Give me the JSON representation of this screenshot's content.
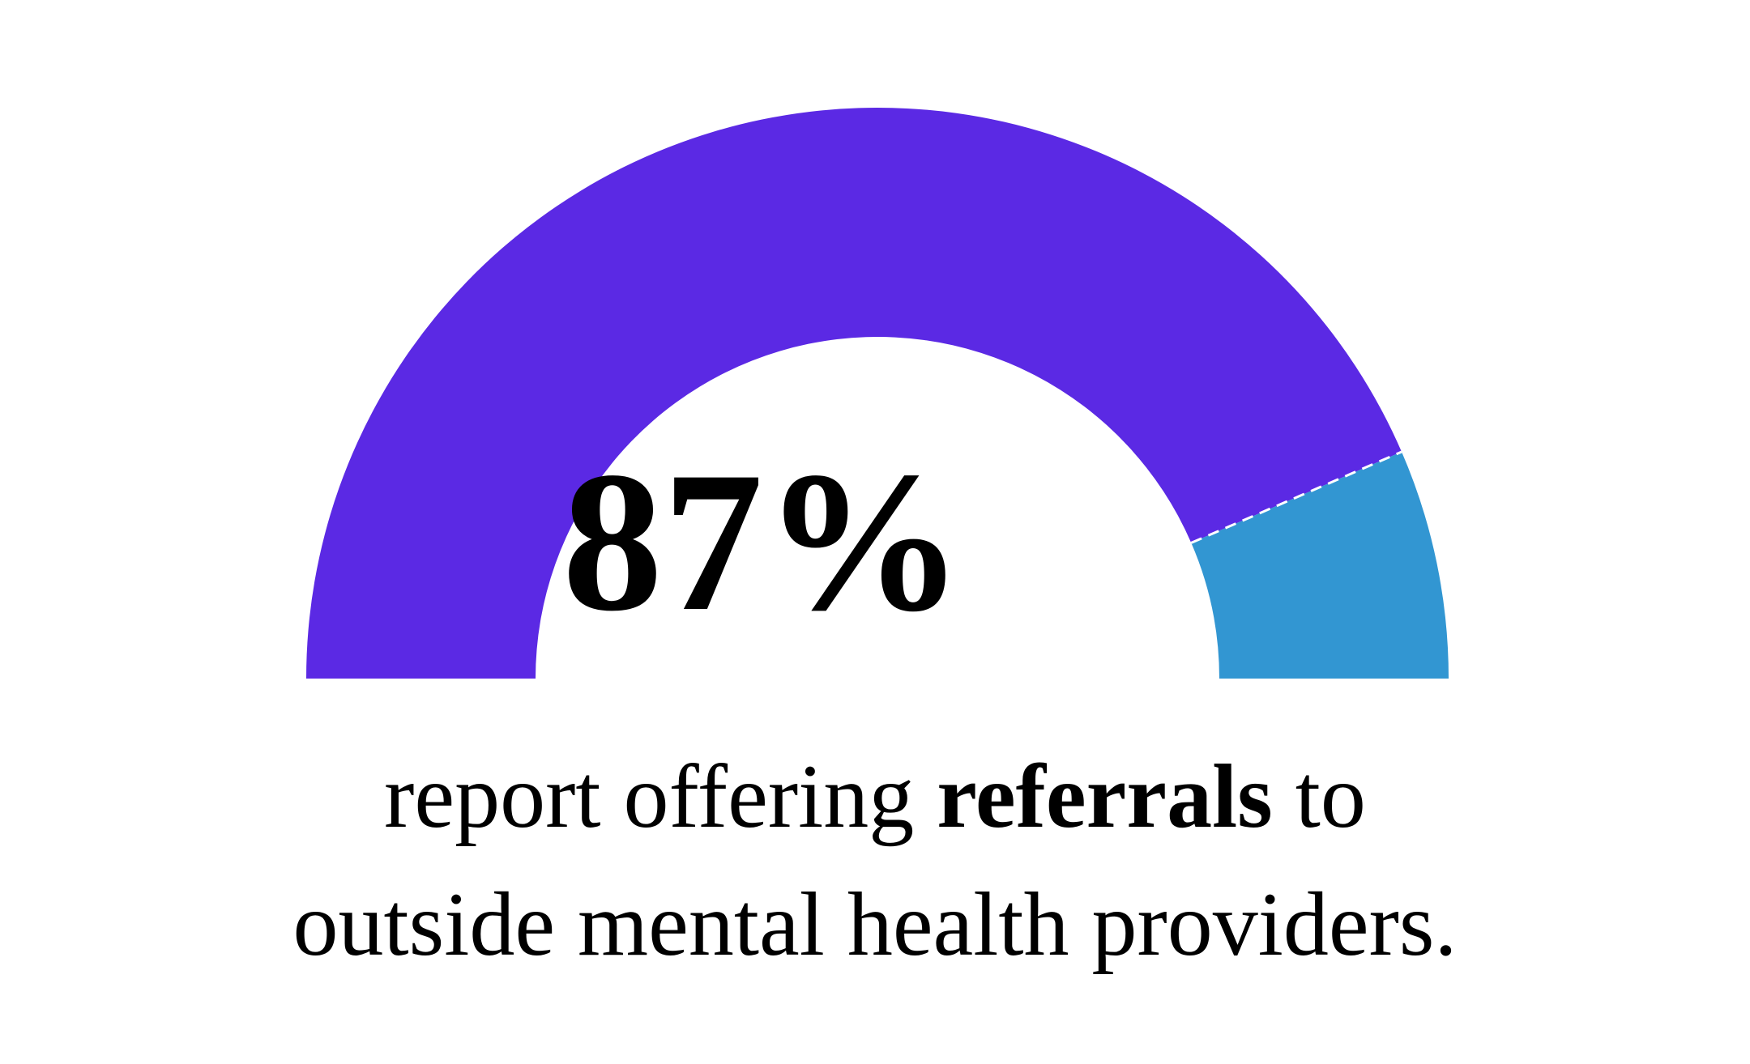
{
  "chart_data": {
    "type": "gauge",
    "value": 87,
    "max": 100,
    "display_value": "87%",
    "segments": [
      {
        "value": 87,
        "color": "#5b29e4"
      },
      {
        "value": 13,
        "color": "#3296d2"
      }
    ],
    "divider_color": "#ffffff",
    "caption": {
      "line1_before": "report offering ",
      "line1_bold": "referrals",
      "line1_after": " to",
      "line2": "outside mental health providers."
    }
  }
}
